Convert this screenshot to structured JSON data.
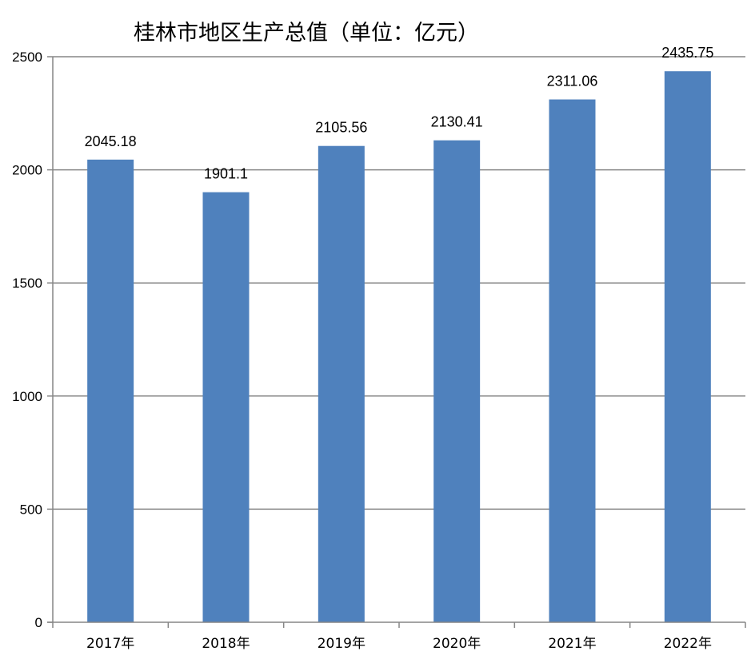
{
  "chart_data": {
    "type": "bar",
    "title": "桂林市地区生产总值（单位：亿元）",
    "categories": [
      "2017年",
      "2018年",
      "2019年",
      "2020年",
      "2021年",
      "2022年"
    ],
    "values": [
      2045.18,
      1901.1,
      2105.56,
      2130.41,
      2311.06,
      2435.75
    ],
    "data_labels": [
      "2045.18",
      "1901.1",
      "2105.56",
      "2130.41",
      "2311.06",
      "2435.75"
    ],
    "yticks": [
      "0",
      "500",
      "1000",
      "1500",
      "2000",
      "2500"
    ],
    "ylim": [
      0,
      2500
    ],
    "grid": true,
    "bar_color": "#4f81bd",
    "grid_color": "#868686"
  }
}
